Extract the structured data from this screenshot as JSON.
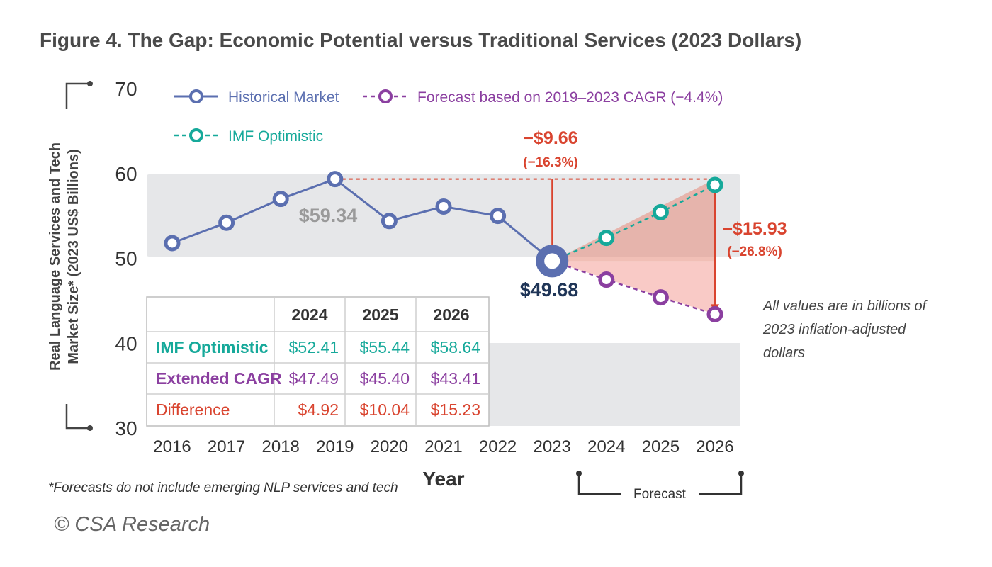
{
  "title": "Figure 4. The Gap: Economic Potential versus Traditional Services (2023 Dollars)",
  "chart_data": {
    "type": "line",
    "ylabel_line1": "Real Language Services and Tech",
    "ylabel_line2": "Market Size* (2023 US$ Billions)",
    "xlabel": "Year",
    "ylim": [
      30,
      70
    ],
    "yticks": [
      "70",
      "60",
      "50",
      "40",
      "30"
    ],
    "categories": [
      "2016",
      "2017",
      "2018",
      "2019",
      "2020",
      "2021",
      "2022",
      "2023",
      "2024",
      "2025",
      "2026"
    ],
    "legend_placement": "top-left",
    "series": [
      {
        "name": "Historical Market",
        "color": "#5b6fb0",
        "x": [
          "2016",
          "2017",
          "2018",
          "2019",
          "2020",
          "2021",
          "2022",
          "2023"
        ],
        "values": [
          51.8,
          54.2,
          57.0,
          59.34,
          54.4,
          56.1,
          55.0,
          49.68
        ]
      },
      {
        "name": "Forecast based on 2019–2023 CAGR (−4.4%)",
        "color": "#8b3fa0",
        "x": [
          "2023",
          "2024",
          "2025",
          "2026"
        ],
        "values": [
          49.68,
          47.49,
          45.4,
          43.41
        ]
      },
      {
        "name": "IMF Optimistic",
        "color": "#16a99a",
        "x": [
          "2023",
          "2024",
          "2025",
          "2026"
        ],
        "values": [
          49.68,
          52.41,
          55.44,
          58.64
        ]
      }
    ],
    "point_labels": {
      "peak": "$59.34",
      "current": "$49.68"
    },
    "annotations": [
      {
        "value": "−$9.66",
        "pct": "(−16.3%)"
      },
      {
        "value": "−$15.93",
        "pct": "(−26.8%)"
      }
    ],
    "note": [
      "All values are in billions of",
      "2023 inflation-adjusted",
      "dollars"
    ],
    "forecast_label": "Forecast",
    "table": {
      "columns": [
        "2024",
        "2025",
        "2026"
      ],
      "rows": [
        {
          "label": "IMF Optimistic",
          "color": "#16a99a",
          "values": [
            "$52.41",
            "$55.44",
            "$58.64"
          ]
        },
        {
          "label": "Extended CAGR",
          "color": "#8b3fa0",
          "values": [
            "$47.49",
            "$45.40",
            "$43.41"
          ]
        },
        {
          "label": "Difference",
          "color": "#d9442f",
          "values": [
            "$4.92",
            "$10.04",
            "$15.23"
          ]
        }
      ]
    }
  },
  "footnote": "*Forecasts do not include emerging NLP services and tech",
  "copyright": "© CSA Research"
}
